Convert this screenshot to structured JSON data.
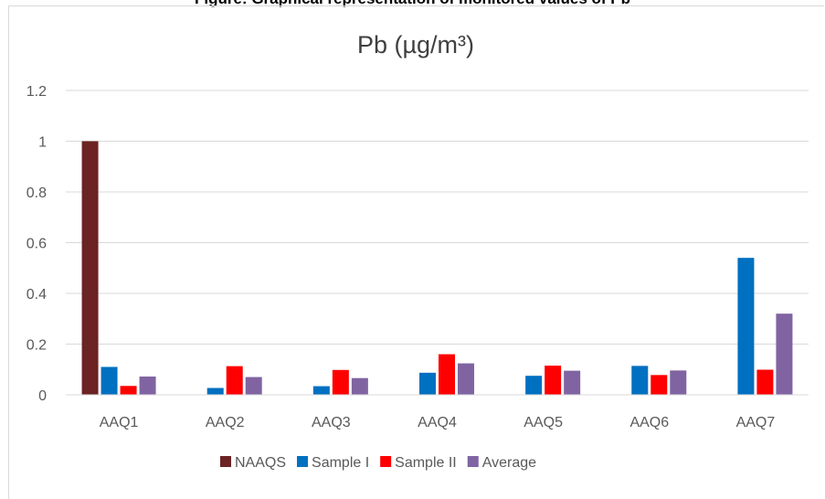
{
  "caption": "Figure: Graphical representation of monitored values of Pb",
  "chart_data": {
    "type": "bar",
    "title": "Pb (µg/m³)",
    "xlabel": "",
    "ylabel": "",
    "categories": [
      "AAQ1",
      "AAQ2",
      "AAQ3",
      "AAQ4",
      "AAQ5",
      "AAQ6",
      "AAQ7"
    ],
    "ylim": [
      0,
      1.2
    ],
    "yticks": [
      "0",
      "0.2",
      "0.4",
      "0.6",
      "0.8",
      "1",
      "1.2"
    ],
    "grid": true,
    "legend_position": "bottom",
    "series": [
      {
        "name": "NAAQS",
        "color": "#6b2323",
        "values": [
          1.0,
          0,
          0,
          0,
          0,
          0,
          0
        ]
      },
      {
        "name": "Sample I",
        "color": "#0070c0",
        "values": [
          0.11,
          0.027,
          0.034,
          0.087,
          0.075,
          0.114,
          0.54
        ]
      },
      {
        "name": "Sample II",
        "color": "#ff0000",
        "values": [
          0.035,
          0.113,
          0.098,
          0.16,
          0.115,
          0.078,
          0.099
        ]
      },
      {
        "name": "Average",
        "color": "#8064a2",
        "values": [
          0.072,
          0.07,
          0.066,
          0.124,
          0.095,
          0.096,
          0.32
        ]
      }
    ]
  }
}
